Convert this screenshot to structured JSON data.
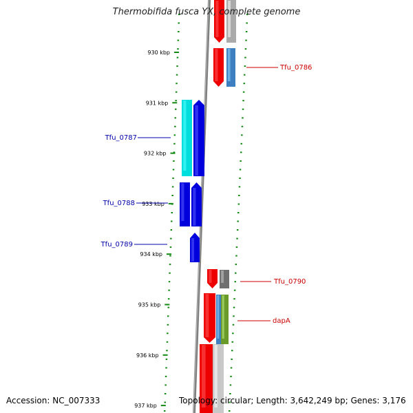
{
  "title": "Thermobifida fusca YX, complete genome",
  "footer": {
    "accession": "Accession: NC_007333",
    "topology": "Topology: circular; Length: 3,642,249 bp; Genes: 3,176"
  },
  "colors": {
    "forward_label": "#0000aa",
    "reverse_label": "#cc0000",
    "dots": "#118811",
    "backbone": "#808080"
  },
  "ticks": [
    {
      "kbp": 930,
      "label": "930 kbp"
    },
    {
      "kbp": 931,
      "label": "931 kbp"
    },
    {
      "kbp": 932,
      "label": "932 kbp"
    },
    {
      "kbp": 933,
      "label": "933 kbp"
    },
    {
      "kbp": 934,
      "label": "934 kbp"
    },
    {
      "kbp": 935,
      "label": "935 kbp"
    },
    {
      "kbp": 936,
      "label": "936 kbp"
    },
    {
      "kbp": 937,
      "label": "937 kbp"
    }
  ],
  "gene_labels": [
    {
      "name": "Tfu_0786",
      "strand": "reverse"
    },
    {
      "name": "Tfu_0787",
      "strand": "forward"
    },
    {
      "name": "Tfu_0788",
      "strand": "forward"
    },
    {
      "name": "Tfu_0789",
      "strand": "forward"
    },
    {
      "name": "Tfu_0790",
      "strand": "reverse"
    },
    {
      "name": "dapA",
      "strand": "reverse"
    }
  ]
}
